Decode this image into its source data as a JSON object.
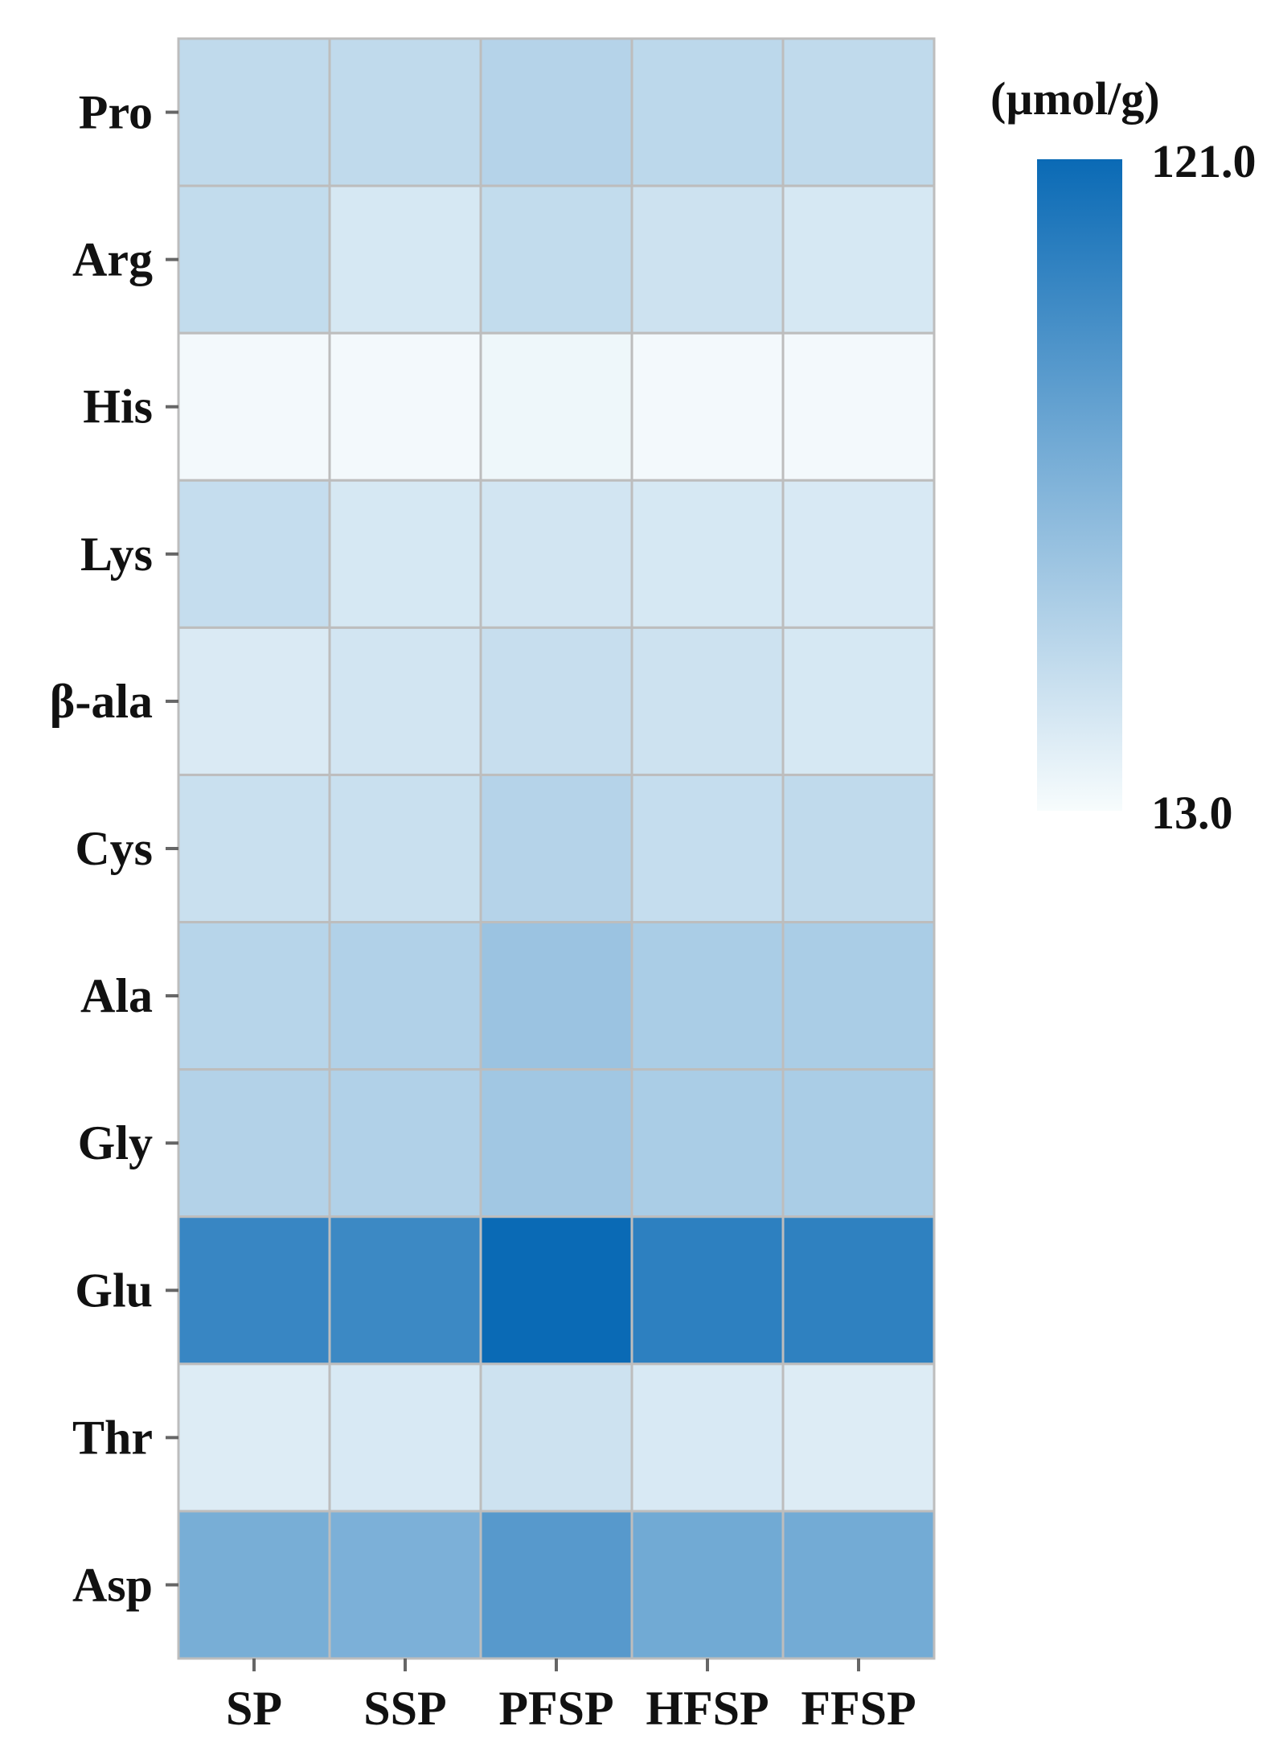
{
  "chart_data": {
    "type": "heatmap",
    "title": "",
    "xlabel": "",
    "ylabel": "",
    "x_categories": [
      "SP",
      "SSP",
      "PFSP",
      "HFSP",
      "FFSP"
    ],
    "y_categories": [
      "Pro",
      "Arg",
      "His",
      "Lys",
      "β-ala",
      "Cys",
      "Ala",
      "Gly",
      "Glu",
      "Thr",
      "Asp"
    ],
    "values": [
      [
        38,
        38,
        43,
        40,
        38
      ],
      [
        37,
        28,
        37,
        32,
        28
      ],
      [
        15,
        15,
        17,
        15,
        15
      ],
      [
        36,
        28,
        30,
        28,
        27
      ],
      [
        26,
        30,
        35,
        32,
        28
      ],
      [
        34,
        34,
        43,
        36,
        38
      ],
      [
        42,
        45,
        55,
        48,
        48
      ],
      [
        44,
        45,
        52,
        48,
        48
      ],
      [
        100,
        98,
        121,
        105,
        104
      ],
      [
        25,
        27,
        32,
        27,
        25
      ],
      [
        71,
        69,
        86,
        74,
        73
      ]
    ],
    "colorbar": {
      "title": "(µmol/g)",
      "min": 13.0,
      "max": 121.0,
      "min_label": "13.0",
      "max_label": "121.0",
      "low_color": "#f7fcfd",
      "high_color": "#0a6ab5"
    },
    "grid_color": "#bdbdbd",
    "tick_color": "#666666",
    "text_color": "#111111"
  }
}
